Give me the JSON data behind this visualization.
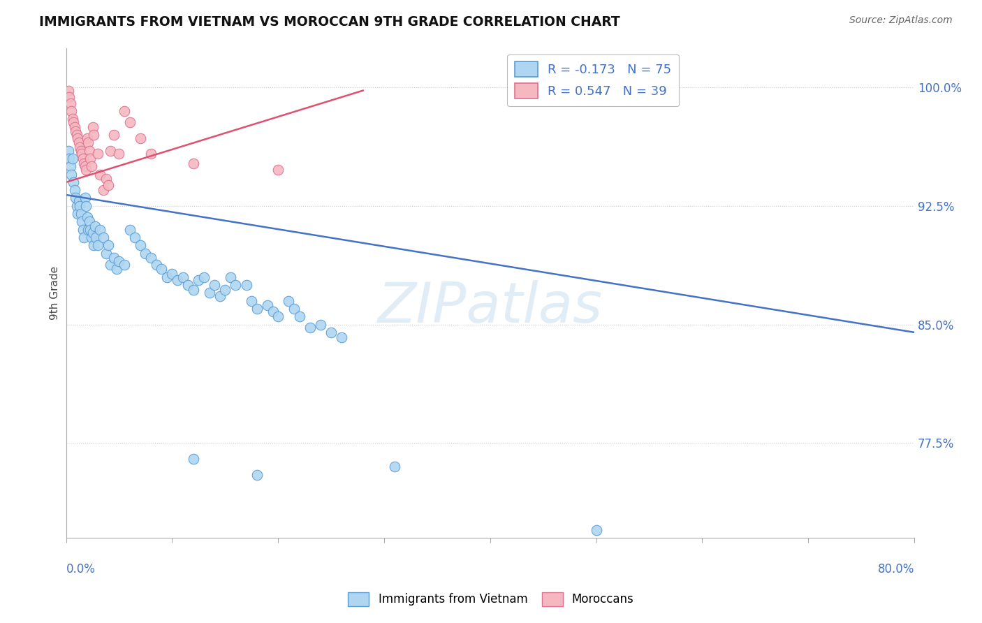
{
  "title": "IMMIGRANTS FROM VIETNAM VS MOROCCAN 9TH GRADE CORRELATION CHART",
  "source": "Source: ZipAtlas.com",
  "ylabel": "9th Grade",
  "xlim": [
    0.0,
    0.8
  ],
  "ylim": [
    0.715,
    1.025
  ],
  "watermark": "ZIPatlas",
  "legend_R_vietnam": "-0.173",
  "legend_N_vietnam": "75",
  "legend_R_moroccan": "0.547",
  "legend_N_moroccan": "39",
  "vietnam_color": "#aed6f1",
  "vietnam_edge_color": "#5b9bd5",
  "moroccan_color": "#f5b7c0",
  "moroccan_edge_color": "#e07090",
  "vietnam_trend_color": "#4472c4",
  "moroccan_trend_color": "#e05070",
  "ytick_vals": [
    0.775,
    0.85,
    0.925,
    1.0
  ],
  "ytick_labels": [
    "77.5%",
    "85.0%",
    "92.5%",
    "100.0%"
  ],
  "vietnam_points": [
    [
      0.002,
      0.96
    ],
    [
      0.003,
      0.955
    ],
    [
      0.004,
      0.95
    ],
    [
      0.005,
      0.945
    ],
    [
      0.006,
      0.955
    ],
    [
      0.007,
      0.94
    ],
    [
      0.008,
      0.935
    ],
    [
      0.009,
      0.93
    ],
    [
      0.01,
      0.925
    ],
    [
      0.011,
      0.92
    ],
    [
      0.012,
      0.928
    ],
    [
      0.013,
      0.925
    ],
    [
      0.014,
      0.92
    ],
    [
      0.015,
      0.915
    ],
    [
      0.016,
      0.91
    ],
    [
      0.017,
      0.905
    ],
    [
      0.018,
      0.93
    ],
    [
      0.019,
      0.925
    ],
    [
      0.02,
      0.918
    ],
    [
      0.021,
      0.91
    ],
    [
      0.022,
      0.915
    ],
    [
      0.023,
      0.91
    ],
    [
      0.024,
      0.905
    ],
    [
      0.025,
      0.908
    ],
    [
      0.026,
      0.9
    ],
    [
      0.027,
      0.912
    ],
    [
      0.028,
      0.905
    ],
    [
      0.03,
      0.9
    ],
    [
      0.032,
      0.91
    ],
    [
      0.035,
      0.905
    ],
    [
      0.038,
      0.895
    ],
    [
      0.04,
      0.9
    ],
    [
      0.042,
      0.888
    ],
    [
      0.045,
      0.892
    ],
    [
      0.048,
      0.885
    ],
    [
      0.05,
      0.89
    ],
    [
      0.055,
      0.888
    ],
    [
      0.06,
      0.91
    ],
    [
      0.065,
      0.905
    ],
    [
      0.07,
      0.9
    ],
    [
      0.075,
      0.895
    ],
    [
      0.08,
      0.892
    ],
    [
      0.085,
      0.888
    ],
    [
      0.09,
      0.885
    ],
    [
      0.095,
      0.88
    ],
    [
      0.1,
      0.882
    ],
    [
      0.105,
      0.878
    ],
    [
      0.11,
      0.88
    ],
    [
      0.115,
      0.875
    ],
    [
      0.12,
      0.872
    ],
    [
      0.125,
      0.878
    ],
    [
      0.13,
      0.88
    ],
    [
      0.135,
      0.87
    ],
    [
      0.14,
      0.875
    ],
    [
      0.145,
      0.868
    ],
    [
      0.15,
      0.872
    ],
    [
      0.155,
      0.88
    ],
    [
      0.16,
      0.875
    ],
    [
      0.17,
      0.875
    ],
    [
      0.175,
      0.865
    ],
    [
      0.18,
      0.86
    ],
    [
      0.19,
      0.862
    ],
    [
      0.195,
      0.858
    ],
    [
      0.2,
      0.855
    ],
    [
      0.21,
      0.865
    ],
    [
      0.215,
      0.86
    ],
    [
      0.22,
      0.855
    ],
    [
      0.23,
      0.848
    ],
    [
      0.24,
      0.85
    ],
    [
      0.25,
      0.845
    ],
    [
      0.26,
      0.842
    ],
    [
      0.12,
      0.765
    ],
    [
      0.18,
      0.755
    ],
    [
      0.31,
      0.76
    ],
    [
      0.5,
      0.72
    ]
  ],
  "moroccan_points": [
    [
      0.002,
      0.998
    ],
    [
      0.003,
      0.994
    ],
    [
      0.004,
      0.99
    ],
    [
      0.005,
      0.985
    ],
    [
      0.006,
      0.98
    ],
    [
      0.007,
      0.978
    ],
    [
      0.008,
      0.975
    ],
    [
      0.009,
      0.972
    ],
    [
      0.01,
      0.97
    ],
    [
      0.011,
      0.968
    ],
    [
      0.012,
      0.965
    ],
    [
      0.013,
      0.962
    ],
    [
      0.014,
      0.96
    ],
    [
      0.015,
      0.958
    ],
    [
      0.016,
      0.955
    ],
    [
      0.017,
      0.952
    ],
    [
      0.018,
      0.95
    ],
    [
      0.019,
      0.948
    ],
    [
      0.02,
      0.968
    ],
    [
      0.021,
      0.965
    ],
    [
      0.022,
      0.96
    ],
    [
      0.023,
      0.955
    ],
    [
      0.024,
      0.95
    ],
    [
      0.025,
      0.975
    ],
    [
      0.026,
      0.97
    ],
    [
      0.03,
      0.958
    ],
    [
      0.032,
      0.945
    ],
    [
      0.035,
      0.935
    ],
    [
      0.038,
      0.942
    ],
    [
      0.04,
      0.938
    ],
    [
      0.042,
      0.96
    ],
    [
      0.045,
      0.97
    ],
    [
      0.05,
      0.958
    ],
    [
      0.055,
      0.985
    ],
    [
      0.06,
      0.978
    ],
    [
      0.07,
      0.968
    ],
    [
      0.08,
      0.958
    ],
    [
      0.12,
      0.952
    ],
    [
      0.2,
      0.948
    ]
  ],
  "vietnam_trend_x": [
    0.0,
    0.8
  ],
  "vietnam_trend_y": [
    0.932,
    0.845
  ],
  "moroccan_trend_x": [
    0.0,
    0.28
  ],
  "moroccan_trend_y": [
    0.94,
    0.998
  ]
}
